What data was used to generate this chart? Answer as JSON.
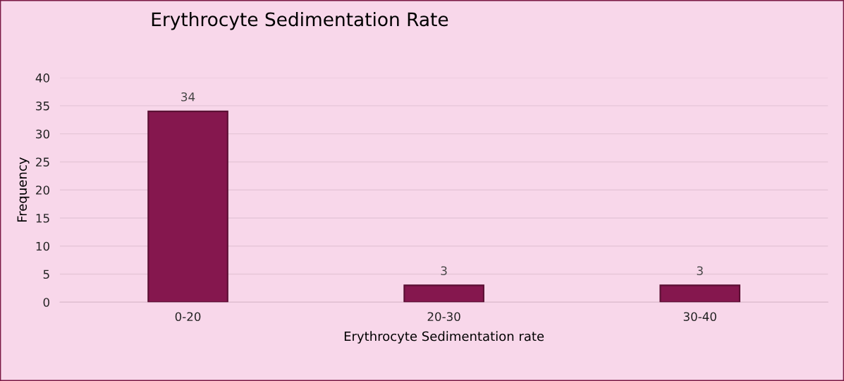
{
  "chart_data": {
    "type": "bar",
    "title": "Erythrocyte Sedimentation Rate",
    "xlabel": "Erythrocyte Sedimentation rate",
    "ylabel": "Frequency",
    "categories": [
      "0-20",
      "20-30",
      "30-40"
    ],
    "values": [
      34,
      3,
      3
    ],
    "color": "#85174e",
    "ylim": [
      0,
      40
    ],
    "yticks": [
      0,
      5,
      10,
      15,
      20,
      25,
      30,
      35,
      40
    ],
    "grid": "y",
    "data_labels": true,
    "legend": false
  }
}
